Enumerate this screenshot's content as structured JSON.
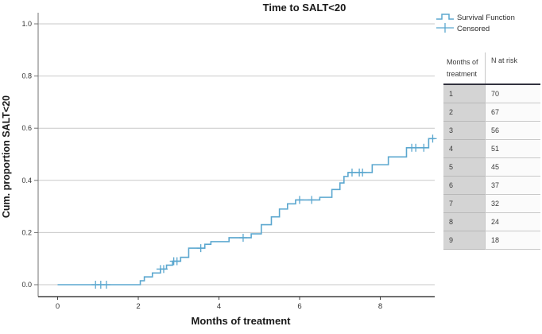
{
  "title": "Time to SALT<20",
  "legend": {
    "items": [
      {
        "label": "Survival Function",
        "marker": "step-line-icon"
      },
      {
        "label": "Censored",
        "marker": "plus-icon"
      }
    ]
  },
  "risk_table": {
    "headers": {
      "col1_line1": "Months of",
      "col1_line2": "treatment",
      "col2": "N at risk"
    },
    "rows": [
      {
        "month": "1",
        "n_at_risk": "70"
      },
      {
        "month": "2",
        "n_at_risk": "67"
      },
      {
        "month": "3",
        "n_at_risk": "56"
      },
      {
        "month": "4",
        "n_at_risk": "51"
      },
      {
        "month": "5",
        "n_at_risk": "45"
      },
      {
        "month": "6",
        "n_at_risk": "37"
      },
      {
        "month": "7",
        "n_at_risk": "32"
      },
      {
        "month": "8",
        "n_at_risk": "24"
      },
      {
        "month": "9",
        "n_at_risk": "18"
      }
    ]
  },
  "chart_data": {
    "type": "line",
    "subtype": "survival-step-function",
    "title": "Time to SALT<20",
    "xlabel": "Months of treatment",
    "ylabel": "Cum. proportion SALT<20",
    "x_ticks": [
      0,
      2,
      4,
      6,
      8
    ],
    "y_tick_labels": [
      "0.0",
      "0.2",
      "0.4",
      "0.6",
      "0.8",
      "1.0"
    ],
    "xlim": [
      -0.5,
      9.35
    ],
    "ylim": [
      -0.05,
      1.05
    ],
    "grid": true,
    "legend_position": "top-right",
    "series": [
      {
        "name": "Survival Function",
        "start": [
          0,
          0.0
        ],
        "step_changes": [
          [
            2.05,
            0.015
          ],
          [
            2.15,
            0.03
          ],
          [
            2.35,
            0.045
          ],
          [
            2.55,
            0.06
          ],
          [
            2.7,
            0.075
          ],
          [
            2.85,
            0.09
          ],
          [
            3.05,
            0.105
          ],
          [
            3.25,
            0.14
          ],
          [
            3.65,
            0.155
          ],
          [
            3.8,
            0.165
          ],
          [
            4.25,
            0.18
          ],
          [
            4.8,
            0.195
          ],
          [
            5.05,
            0.23
          ],
          [
            5.3,
            0.26
          ],
          [
            5.5,
            0.29
          ],
          [
            5.7,
            0.31
          ],
          [
            5.9,
            0.325
          ],
          [
            6.5,
            0.335
          ],
          [
            6.8,
            0.365
          ],
          [
            7.0,
            0.39
          ],
          [
            7.1,
            0.415
          ],
          [
            7.2,
            0.43
          ],
          [
            7.8,
            0.46
          ],
          [
            8.2,
            0.49
          ],
          [
            8.65,
            0.525
          ],
          [
            9.2,
            0.56
          ]
        ],
        "end_x": 9.35
      }
    ],
    "censored_points": [
      [
        0.94,
        0.0
      ],
      [
        1.07,
        0.0
      ],
      [
        1.21,
        0.0
      ],
      [
        2.55,
        0.06
      ],
      [
        2.63,
        0.06
      ],
      [
        2.88,
        0.09
      ],
      [
        2.96,
        0.09
      ],
      [
        3.55,
        0.14
      ],
      [
        4.6,
        0.18
      ],
      [
        6.0,
        0.325
      ],
      [
        6.3,
        0.325
      ],
      [
        7.3,
        0.43
      ],
      [
        7.48,
        0.43
      ],
      [
        7.56,
        0.43
      ],
      [
        8.78,
        0.525
      ],
      [
        8.88,
        0.525
      ],
      [
        9.08,
        0.525
      ],
      [
        9.3,
        0.56
      ]
    ]
  },
  "colors": {
    "line": "#5ba7cf",
    "grid": "#c9c9c9",
    "axis_bottom": "#404040",
    "axis_left": "#737373",
    "tick_text": "#333333"
  }
}
